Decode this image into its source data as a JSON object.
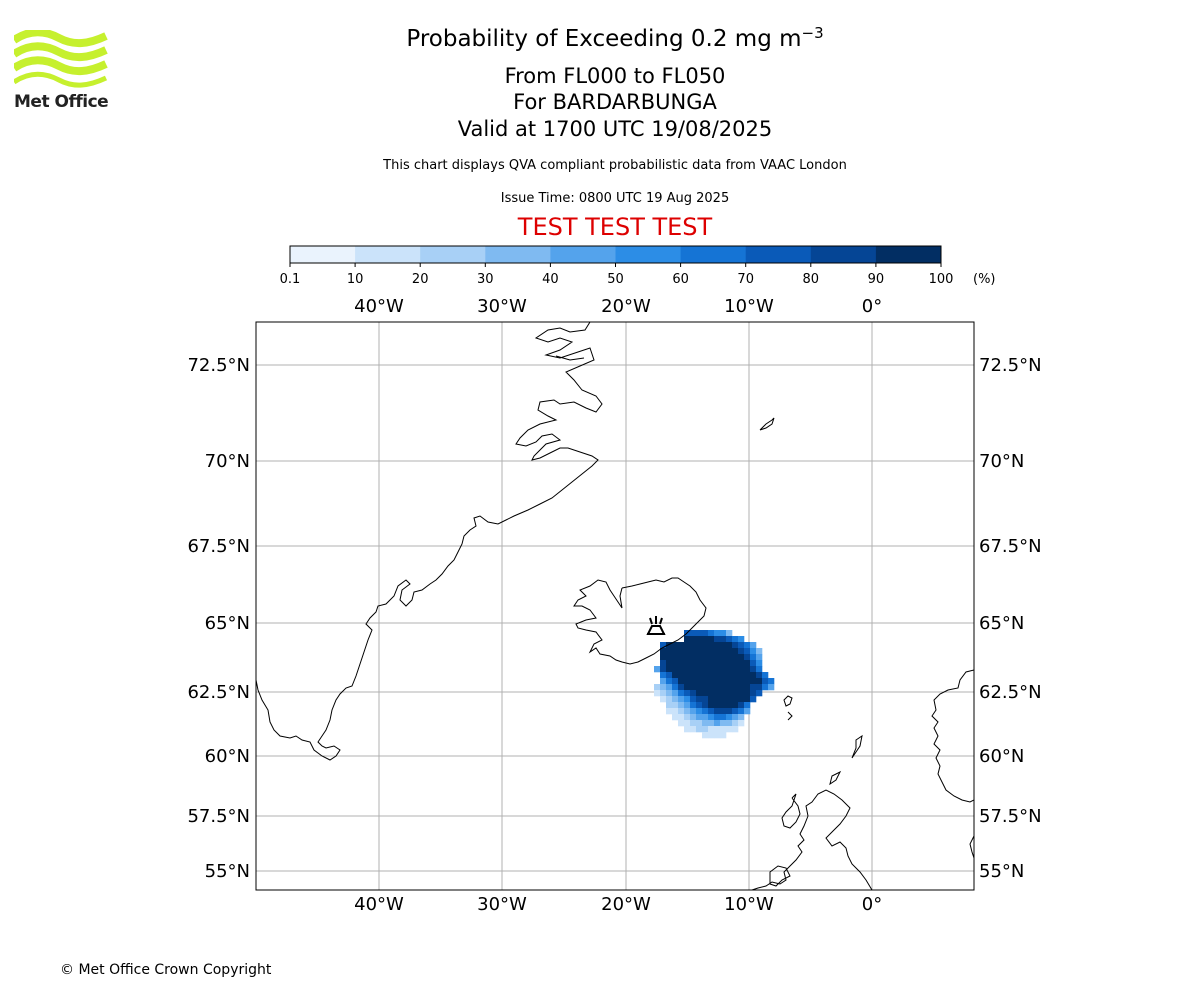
{
  "header": {
    "title_main": "Probability of Exceeding 0.2 mg m",
    "title_sup": "−3",
    "subtitle_levels": "From FL000 to FL050",
    "subtitle_volcano": "For BARDARBUNGA",
    "subtitle_valid": "Valid at 1700 UTC 19/08/2025",
    "disclaimer": "This chart displays QVA compliant probabilistic data from VAAC London",
    "issue_time": "Issue Time: 0800 UTC 19 Aug 2025",
    "test_banner": "TEST TEST TEST",
    "test_color": "#dd0000"
  },
  "logo": {
    "text": "Met Office",
    "wave_color": "#c6f02e",
    "icon": "met-office-waves-logo"
  },
  "colorbar": {
    "ticks": [
      "0.1",
      "10",
      "20",
      "30",
      "40",
      "50",
      "60",
      "70",
      "80",
      "90",
      "100"
    ],
    "unit": "(%)",
    "colors": [
      "#eaf3fd",
      "#cbe3fa",
      "#a8d0f6",
      "#7fbaf1",
      "#54a3ec",
      "#2c8de6",
      "#1574d5",
      "#0a5ab8",
      "#054595",
      "#022e63"
    ]
  },
  "map": {
    "lon_labels": [
      "40°W",
      "30°W",
      "20°W",
      "10°W",
      "0°"
    ],
    "lat_labels": [
      "72.5°N",
      "70°N",
      "67.5°N",
      "65°N",
      "62.5°N",
      "60°N",
      "57.5°N",
      "55°N"
    ],
    "gridline_color": "#b0b0b0",
    "coastline_color": "#000000",
    "volcano_icon": "volcano-icon"
  },
  "footer": {
    "copyright": "© Met Office Crown Copyright"
  }
}
